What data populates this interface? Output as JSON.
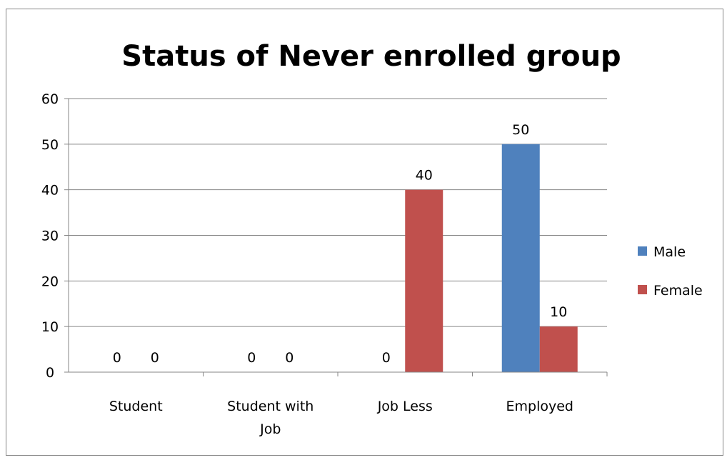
{
  "chart_data": {
    "type": "bar",
    "title": "Status of Never enrolled group",
    "xlabel": "",
    "ylabel": "",
    "categories": [
      "Student",
      "Student with Job",
      "Job Less",
      "Employed"
    ],
    "category_lines": [
      [
        "Student"
      ],
      [
        "Student with",
        "Job"
      ],
      [
        "Job Less"
      ],
      [
        "Employed"
      ]
    ],
    "series": [
      {
        "name": "Male",
        "values": [
          0,
          0,
          0,
          50
        ],
        "color": "#4F81BD"
      },
      {
        "name": "Female",
        "values": [
          0,
          0,
          40,
          10
        ],
        "color": "#C0504D"
      }
    ],
    "ylim": [
      0,
      60
    ],
    "yticks": [
      0,
      10,
      20,
      30,
      40,
      50,
      60
    ],
    "grid": true,
    "legend_position": "right",
    "data_labels": true
  }
}
